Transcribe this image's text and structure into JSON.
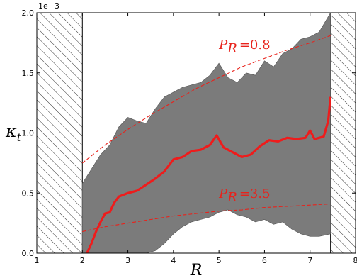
{
  "chart_data": {
    "type": "area",
    "xlabel": "R",
    "ylabel_symbol": "κ",
    "ylabel_subscript": "t",
    "y_multiplier_label": "1e−3",
    "xlim": [
      1,
      8
    ],
    "ylim": [
      0.0,
      2.0
    ],
    "xticks": [
      "1",
      "2",
      "3",
      "4",
      "5",
      "6",
      "7",
      "8"
    ],
    "yticks": [
      "0.0",
      "0.5",
      "1.0",
      "1.5",
      "2.0"
    ],
    "grid": false,
    "colors": {
      "band": "#7b7b7b",
      "mean": "#ee1c1c",
      "reference": "#e8221b",
      "hatch": "#000000"
    },
    "excluded_regions": [
      {
        "from": 1.0,
        "to": 2.0,
        "style": "hatched"
      },
      {
        "from": 7.45,
        "to": 8.0,
        "style": "hatched"
      }
    ],
    "band": {
      "x": [
        2.0,
        2.2,
        2.4,
        2.6,
        2.8,
        3.0,
        3.2,
        3.4,
        3.6,
        3.8,
        4.0,
        4.2,
        4.4,
        4.6,
        4.8,
        5.0,
        5.2,
        5.4,
        5.6,
        5.8,
        6.0,
        6.2,
        6.4,
        6.6,
        6.8,
        7.0,
        7.2,
        7.45
      ],
      "upper": [
        0.58,
        0.7,
        0.82,
        0.9,
        1.05,
        1.13,
        1.1,
        1.08,
        1.2,
        1.3,
        1.34,
        1.38,
        1.4,
        1.42,
        1.48,
        1.58,
        1.46,
        1.42,
        1.5,
        1.48,
        1.6,
        1.55,
        1.66,
        1.7,
        1.78,
        1.8,
        1.84,
        2.0
      ],
      "lower": [
        0.0,
        0.0,
        0.0,
        0.0,
        0.0,
        0.0,
        0.0,
        0.0,
        0.02,
        0.08,
        0.16,
        0.22,
        0.26,
        0.28,
        0.3,
        0.34,
        0.36,
        0.32,
        0.3,
        0.26,
        0.28,
        0.24,
        0.26,
        0.2,
        0.16,
        0.14,
        0.14,
        0.16
      ]
    },
    "series": [
      {
        "x": [
          2.1,
          2.2,
          2.3,
          2.4,
          2.5,
          2.6,
          2.7,
          2.8,
          3.0,
          3.2,
          3.4,
          3.6,
          3.8,
          4.0,
          4.2,
          4.4,
          4.6,
          4.8,
          4.95,
          5.1,
          5.3,
          5.5,
          5.7,
          5.9,
          6.1,
          6.3,
          6.5,
          6.7,
          6.9,
          7.0,
          7.1,
          7.2,
          7.3,
          7.4,
          7.45
        ],
        "values": [
          0.0,
          0.08,
          0.18,
          0.26,
          0.33,
          0.34,
          0.42,
          0.47,
          0.5,
          0.52,
          0.57,
          0.62,
          0.68,
          0.78,
          0.8,
          0.85,
          0.86,
          0.9,
          0.98,
          0.88,
          0.84,
          0.8,
          0.82,
          0.89,
          0.94,
          0.93,
          0.96,
          0.95,
          0.96,
          1.02,
          0.95,
          0.96,
          0.97,
          1.1,
          1.3
        ]
      }
    ],
    "reference_curves": [
      {
        "label_symbol": "P",
        "label_subscript": "R",
        "label_value": "=0.8",
        "x": [
          2.0,
          2.5,
          3.0,
          3.5,
          4.0,
          4.5,
          5.0,
          5.5,
          6.0,
          6.5,
          7.0,
          7.45
        ],
        "values": [
          0.75,
          0.9,
          1.03,
          1.15,
          1.26,
          1.37,
          1.46,
          1.55,
          1.62,
          1.69,
          1.75,
          1.81
        ],
        "label_x": 5.0,
        "label_y": 1.7
      },
      {
        "label_symbol": "P",
        "label_subscript": "R",
        "label_value": "=3.5",
        "x": [
          2.0,
          2.5,
          3.0,
          3.5,
          4.0,
          4.5,
          5.0,
          5.5,
          6.0,
          6.5,
          7.0,
          7.45
        ],
        "values": [
          0.18,
          0.22,
          0.25,
          0.28,
          0.31,
          0.33,
          0.35,
          0.36,
          0.38,
          0.39,
          0.4,
          0.41
        ],
        "label_x": 5.0,
        "label_y": 0.46
      }
    ]
  }
}
